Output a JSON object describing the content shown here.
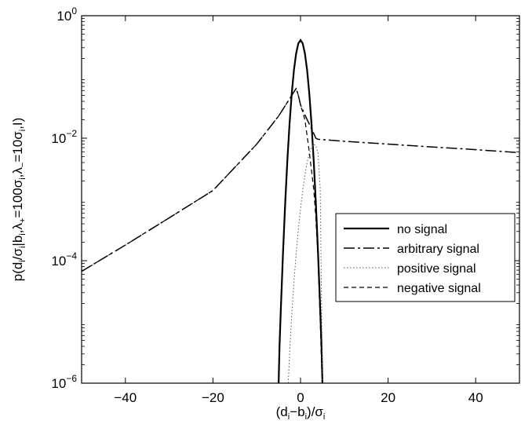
{
  "chart_data": {
    "type": "line",
    "x_axis": {
      "min": -50,
      "max": 50,
      "ticks": [
        -40,
        -20,
        0,
        20,
        40
      ],
      "tick_labels": [
        "−40",
        "−20",
        "0",
        "20",
        "40"
      ],
      "label": {
        "parts": [
          [
            "n",
            "(d"
          ],
          [
            "s",
            "i"
          ],
          [
            "n",
            "−b"
          ],
          [
            "s",
            "i"
          ],
          [
            "n",
            ")/σ"
          ],
          [
            "s",
            "i"
          ]
        ]
      }
    },
    "y_axis": {
      "scale": "log",
      "min": 1e-06,
      "max": 1,
      "ticks": [
        1e-06,
        0.0001,
        0.01,
        1
      ],
      "tick_labels": [
        {
          "base": "10",
          "exp": "−6"
        },
        {
          "base": "10",
          "exp": "−4"
        },
        {
          "base": "10",
          "exp": "−2"
        },
        {
          "base": "10",
          "exp": "0"
        }
      ],
      "label": {
        "parts": [
          [
            "n",
            "p(d"
          ],
          [
            "s",
            "i"
          ],
          [
            "n",
            "/σ"
          ],
          [
            "s",
            "i"
          ],
          [
            "n",
            "|b"
          ],
          [
            "s",
            "i"
          ],
          [
            "n",
            ",λ"
          ],
          [
            "s",
            "+"
          ],
          [
            "n",
            "=100σ"
          ],
          [
            "s",
            "i"
          ],
          [
            "n",
            ",λ"
          ],
          [
            "s",
            "−"
          ],
          [
            "n",
            "=10σ"
          ],
          [
            "s",
            "i"
          ],
          [
            "n",
            ",I)"
          ]
        ]
      }
    },
    "grid": false,
    "legend": {
      "placement": "right-middle"
    },
    "series": [
      {
        "name": "no signal",
        "color": "#000000",
        "dash": "solid",
        "points": [
          [
            -5,
            1e-06
          ],
          [
            -4.8,
            4e-06
          ],
          [
            -4.5,
            1.6e-05
          ],
          [
            -4,
            0.000134
          ],
          [
            -3.5,
            0.00087
          ],
          [
            -3,
            0.00443
          ],
          [
            -2.5,
            0.0175
          ],
          [
            -2,
            0.054
          ],
          [
            -1.5,
            0.13
          ],
          [
            -1,
            0.242
          ],
          [
            -0.5,
            0.352
          ],
          [
            0,
            0.399
          ],
          [
            0.5,
            0.352
          ],
          [
            1,
            0.242
          ],
          [
            1.5,
            0.13
          ],
          [
            2,
            0.054
          ],
          [
            2.5,
            0.0175
          ],
          [
            3,
            0.00443
          ],
          [
            3.5,
            0.00087
          ],
          [
            4,
            0.000134
          ],
          [
            4.5,
            1.6e-05
          ],
          [
            4.8,
            4e-06
          ],
          [
            5,
            1e-06
          ]
        ]
      },
      {
        "name": "arbitrary signal",
        "color": "#000000",
        "dash": "dashdot",
        "points": [
          [
            -50,
            6.7e-05
          ],
          [
            -40,
            0.00018
          ],
          [
            -30,
            0.0005
          ],
          [
            -20,
            0.0014
          ],
          [
            -10,
            0.008
          ],
          [
            -5,
            0.023
          ],
          [
            -2,
            0.05
          ],
          [
            -1,
            0.065
          ],
          [
            -0.5,
            0.05
          ],
          [
            0,
            0.035
          ],
          [
            1,
            0.024
          ],
          [
            2,
            0.017
          ],
          [
            3,
            0.012
          ],
          [
            3.5,
            0.01
          ],
          [
            4,
            0.0096
          ],
          [
            10,
            0.0089
          ],
          [
            20,
            0.008
          ],
          [
            30,
            0.0072
          ],
          [
            40,
            0.0065
          ],
          [
            50,
            0.0058
          ]
        ]
      },
      {
        "name": "positive signal",
        "color": "#555555",
        "dash": "dotted",
        "points": [
          [
            -2.8,
            1e-06
          ],
          [
            -2.5,
            3e-06
          ],
          [
            -2,
            1.3e-05
          ],
          [
            -1.5,
            4.5e-05
          ],
          [
            -1,
            0.00013
          ],
          [
            -0.5,
            0.00032
          ],
          [
            0,
            0.0007
          ],
          [
            0.5,
            0.0014
          ],
          [
            1,
            0.0025
          ],
          [
            1.5,
            0.004
          ],
          [
            2,
            0.0056
          ],
          [
            2.5,
            0.007
          ],
          [
            3,
            0.008
          ],
          [
            3.5,
            0.0076
          ],
          [
            4,
            0.0056
          ],
          [
            4.5,
            0.0015
          ],
          [
            4.8,
            2e-05
          ],
          [
            5,
            1e-06
          ]
        ]
      },
      {
        "name": "negative signal",
        "color": "#000000",
        "dash": "dashed",
        "points": [
          [
            -50,
            6.7e-05
          ],
          [
            -40,
            0.00018
          ],
          [
            -30,
            0.0005
          ],
          [
            -20,
            0.0014
          ],
          [
            -10,
            0.008
          ],
          [
            -5,
            0.023
          ],
          [
            -2,
            0.05
          ],
          [
            -1,
            0.065
          ],
          [
            -0.5,
            0.05
          ],
          [
            0,
            0.035
          ],
          [
            1,
            0.02
          ],
          [
            2,
            0.006
          ],
          [
            3,
            0.0015
          ],
          [
            3.5,
            0.0005
          ],
          [
            4,
            0.0001
          ],
          [
            4.5,
            1e-05
          ],
          [
            4.8,
            2e-06
          ],
          [
            5,
            1e-06
          ]
        ]
      }
    ]
  }
}
